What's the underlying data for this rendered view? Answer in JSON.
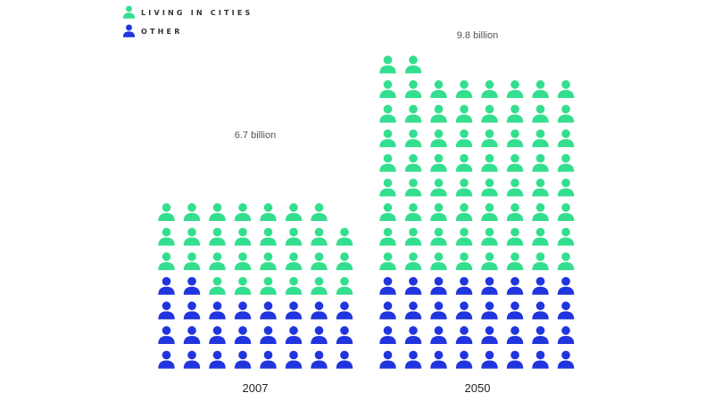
{
  "colors": {
    "cities": "#33DF8F",
    "other": "#2035DE"
  },
  "legend": {
    "items": [
      {
        "key": "cities",
        "label": "LIVING IN CITIES",
        "color": "#33DF8F",
        "icon": "person-icon"
      },
      {
        "key": "other",
        "label": "OTHER",
        "color": "#2035DE",
        "icon": "person-icon"
      }
    ]
  },
  "chart_data": {
    "type": "pictogram",
    "columns_per_group": 8,
    "groups": [
      {
        "year": "2007",
        "total_label": "6.7 billion",
        "icons_cities": 29,
        "icons_other": 26
      },
      {
        "year": "2050",
        "total_label": "9.8 billion",
        "icons_cities": 66,
        "icons_other": 32
      }
    ]
  }
}
